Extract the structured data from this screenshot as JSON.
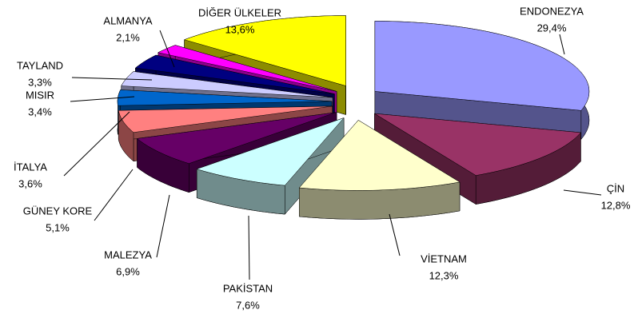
{
  "chart_data": {
    "type": "pie",
    "categories": [
      "ENDONEZYA",
      "ÇİN",
      "VİETNAM",
      "PAKİSTAN",
      "MALEZYA",
      "GÜNEY KORE",
      "İTALYA",
      "MISIR",
      "TAYLAND",
      "ALMANYA",
      "DİĞER ÜLKELER"
    ],
    "values": [
      29.4,
      12.8,
      12.3,
      7.6,
      6.9,
      5.1,
      3.6,
      3.4,
      3.3,
      2.1,
      13.6
    ],
    "value_labels": [
      "29,4%",
      "12,8%",
      "12,3%",
      "7,6%",
      "6,9%",
      "5,1%",
      "3,6%",
      "3,4%",
      "3,3%",
      "2,1%",
      "13,6%"
    ],
    "colors": [
      "#9999ff",
      "#993366",
      "#ffffcc",
      "#ccffff",
      "#660066",
      "#ff8080",
      "#0066cc",
      "#ccccff",
      "#000080",
      "#ff00ff",
      "#ffff00"
    ]
  }
}
